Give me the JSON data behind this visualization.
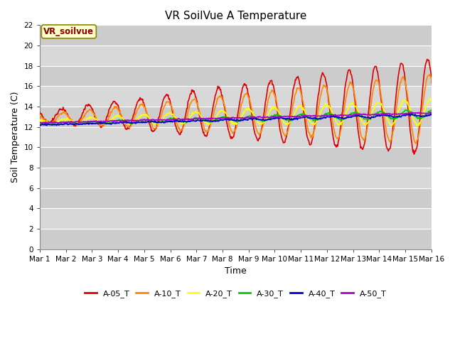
{
  "title": "VR SoilVue A Temperature",
  "xlabel": "Time",
  "ylabel": "Soil Temperature (C)",
  "ylim": [
    0,
    22
  ],
  "figure_bg": "#ffffff",
  "plot_bg": "#d8d8d8",
  "grid_color": "#ffffff",
  "series": {
    "A-05_T": {
      "color": "#dd0000",
      "linewidth": 1.2
    },
    "A-10_T": {
      "color": "#ff8800",
      "linewidth": 1.2
    },
    "A-20_T": {
      "color": "#ffff00",
      "linewidth": 1.2
    },
    "A-30_T": {
      "color": "#00cc00",
      "linewidth": 1.2
    },
    "A-40_T": {
      "color": "#0000cc",
      "linewidth": 1.2
    },
    "A-50_T": {
      "color": "#aa00cc",
      "linewidth": 1.2
    }
  },
  "annotation_text": "VR_soilvue",
  "annotation_color": "#880000",
  "annotation_bg": "#ffffcc",
  "annotation_edge": "#888800",
  "xtick_labels": [
    "Mar 1",
    "Mar 2",
    "Mar 3",
    "Mar 4",
    "Mar 5",
    "Mar 6",
    "Mar 7",
    "Mar 8",
    "Mar 9",
    "Mar 10",
    "Mar 11",
    "Mar 12",
    "Mar 13",
    "Mar 14",
    "Mar 15",
    "Mar 16"
  ],
  "ytick_values": [
    0,
    2,
    4,
    6,
    8,
    10,
    12,
    14,
    16,
    18,
    20,
    22
  ],
  "n_days": 16,
  "points_per_day": 48
}
